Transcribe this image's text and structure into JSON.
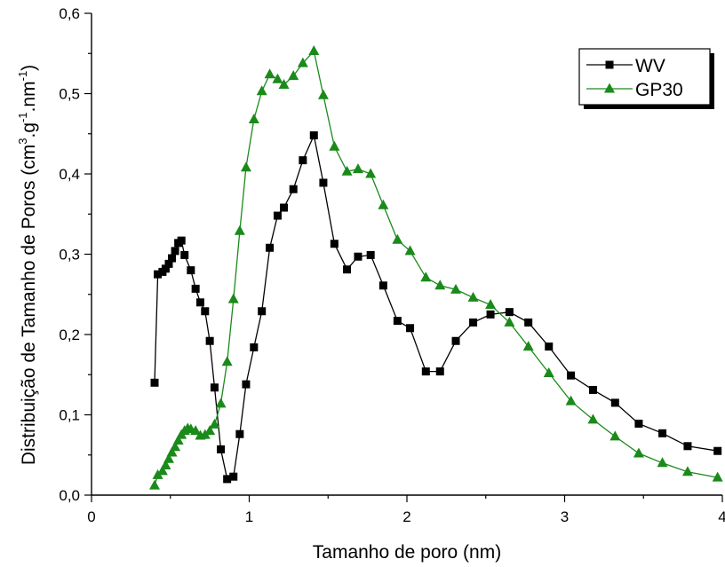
{
  "chart_data": {
    "type": "line",
    "title": "",
    "xlabel": "Tamanho de poro (nm)",
    "ylabel": "Distribuição de Tamanho de Poros (cm3.g-1.nm-1)",
    "ylabel_parts": {
      "main": "Distribuição de Tamanho de Poros (cm",
      "sup1": "3",
      "mid": ".g",
      "sup2": "-1",
      "mid2": ".nm",
      "sup3": "-1",
      "end": ")"
    },
    "xlim": [
      0,
      4
    ],
    "ylim": [
      0,
      0.6
    ],
    "x_ticks": [
      0,
      1,
      2,
      3,
      4
    ],
    "x_tick_labels": [
      "0",
      "1",
      "2",
      "3",
      "4"
    ],
    "y_ticks": [
      0,
      0.1,
      0.2,
      0.3,
      0.4,
      0.5,
      0.6
    ],
    "y_tick_labels": [
      "0,0",
      "0,1",
      "0,2",
      "0,3",
      "0,4",
      "0,5",
      "0,6"
    ],
    "grid": false,
    "legend_position": "top-right",
    "series": [
      {
        "name": "WV",
        "color": "#000000",
        "marker": "square",
        "x": [
          0.4,
          0.42,
          0.45,
          0.47,
          0.49,
          0.51,
          0.53,
          0.55,
          0.57,
          0.59,
          0.63,
          0.66,
          0.69,
          0.72,
          0.75,
          0.78,
          0.82,
          0.86,
          0.9,
          0.94,
          0.98,
          1.03,
          1.08,
          1.13,
          1.18,
          1.22,
          1.28,
          1.34,
          1.41,
          1.47,
          1.54,
          1.62,
          1.69,
          1.77,
          1.85,
          1.94,
          2.02,
          2.12,
          2.21,
          2.31,
          2.42,
          2.53,
          2.65,
          2.77,
          2.9,
          3.04,
          3.18,
          3.32,
          3.47,
          3.62,
          3.78,
          3.97
        ],
        "y": [
          0.14,
          0.275,
          0.278,
          0.282,
          0.288,
          0.295,
          0.304,
          0.314,
          0.317,
          0.299,
          0.28,
          0.257,
          0.24,
          0.229,
          0.192,
          0.134,
          0.057,
          0.02,
          0.023,
          0.076,
          0.138,
          0.184,
          0.229,
          0.308,
          0.348,
          0.358,
          0.381,
          0.417,
          0.448,
          0.389,
          0.313,
          0.281,
          0.297,
          0.299,
          0.261,
          0.217,
          0.208,
          0.154,
          0.154,
          0.192,
          0.215,
          0.225,
          0.228,
          0.215,
          0.185,
          0.149,
          0.131,
          0.115,
          0.089,
          0.077,
          0.061,
          0.055
        ]
      },
      {
        "name": "GP30",
        "color": "#1a8a1a",
        "marker": "triangle",
        "x": [
          0.4,
          0.42,
          0.45,
          0.47,
          0.49,
          0.51,
          0.53,
          0.55,
          0.57,
          0.59,
          0.61,
          0.63,
          0.66,
          0.69,
          0.72,
          0.75,
          0.78,
          0.82,
          0.86,
          0.9,
          0.94,
          0.98,
          1.03,
          1.08,
          1.13,
          1.18,
          1.22,
          1.28,
          1.34,
          1.41,
          1.47,
          1.54,
          1.62,
          1.69,
          1.77,
          1.85,
          1.94,
          2.02,
          2.12,
          2.21,
          2.31,
          2.42,
          2.53,
          2.65,
          2.77,
          2.9,
          3.04,
          3.18,
          3.32,
          3.47,
          3.62,
          3.78,
          3.97
        ],
        "y": [
          0.012,
          0.025,
          0.03,
          0.037,
          0.045,
          0.053,
          0.06,
          0.068,
          0.075,
          0.08,
          0.083,
          0.082,
          0.08,
          0.074,
          0.075,
          0.08,
          0.088,
          0.114,
          0.166,
          0.244,
          0.329,
          0.408,
          0.468,
          0.503,
          0.524,
          0.518,
          0.511,
          0.522,
          0.538,
          0.553,
          0.498,
          0.434,
          0.403,
          0.406,
          0.4,
          0.361,
          0.318,
          0.304,
          0.271,
          0.261,
          0.256,
          0.246,
          0.237,
          0.215,
          0.185,
          0.152,
          0.117,
          0.094,
          0.073,
          0.052,
          0.04,
          0.029,
          0.022
        ]
      }
    ]
  }
}
